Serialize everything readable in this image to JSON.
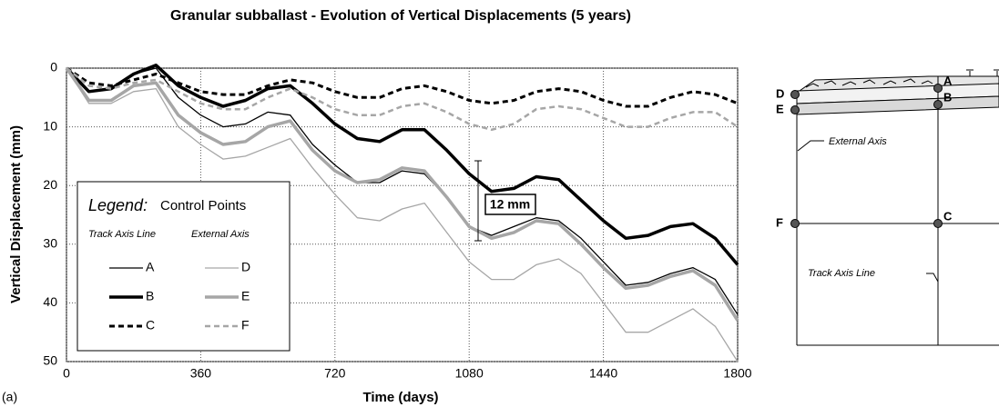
{
  "chart_data": {
    "type": "line",
    "title": "Granular subballast - Evolution of Vertical Displacements (5 years)",
    "x_label": "Time (days)",
    "y_label": "Vertical Displacement (mm)",
    "panel_label": "(a)",
    "x": [
      0,
      60,
      120,
      180,
      240,
      300,
      360,
      420,
      480,
      540,
      600,
      660,
      720,
      780,
      840,
      900,
      960,
      1020,
      1080,
      1140,
      1200,
      1260,
      1320,
      1380,
      1440,
      1500,
      1560,
      1620,
      1680,
      1740,
      1800
    ],
    "xlim": [
      0,
      1800
    ],
    "xticks": [
      0,
      360,
      720,
      1080,
      1440,
      1800
    ],
    "ylim": [
      0,
      50
    ],
    "yticks": [
      0,
      10,
      20,
      30,
      40,
      50
    ],
    "y_inverted": true,
    "grid": true,
    "legend_title": "Legend:",
    "legend_subtitle": "Control Points",
    "legend_columns": [
      "Track Axis Line",
      "External Axis"
    ],
    "annotation": "12 mm",
    "series": [
      {
        "name": "A",
        "color": "#000000",
        "width": 1.3,
        "dashed": false,
        "values": [
          0,
          4,
          3.5,
          1,
          0,
          5,
          8,
          10,
          9.5,
          7.5,
          8,
          13,
          16.5,
          19.5,
          19.5,
          17.5,
          18,
          22,
          27,
          28.5,
          27,
          25.5,
          26,
          29,
          33,
          37,
          36.5,
          35,
          34,
          36,
          42
        ]
      },
      {
        "name": "B",
        "color": "#000000",
        "width": 3.5,
        "dashed": false,
        "values": [
          0,
          4,
          3.5,
          1,
          -0.5,
          3,
          5,
          6.5,
          5.5,
          3.5,
          3,
          6,
          9.5,
          12,
          12.5,
          10.5,
          10.5,
          14,
          18,
          21,
          20.5,
          18.5,
          19,
          22.5,
          26,
          29,
          28.5,
          27,
          26.5,
          29,
          33.5
        ]
      },
      {
        "name": "C",
        "color": "#000000",
        "width": 3,
        "dashed": true,
        "values": [
          0,
          2.5,
          3,
          2,
          1,
          2.5,
          4,
          4.5,
          4.5,
          3,
          2,
          2.5,
          4,
          5,
          5,
          3.5,
          3,
          4,
          5.5,
          6,
          5.5,
          4,
          3.5,
          4,
          5.5,
          6.5,
          6.5,
          5,
          4,
          4.5,
          6
        ]
      },
      {
        "name": "D",
        "color": "#a6a6a6",
        "width": 1.3,
        "dashed": false,
        "values": [
          0,
          6,
          6,
          4,
          3.5,
          10,
          13,
          15.5,
          15,
          13.5,
          12,
          17,
          21.5,
          25.5,
          26,
          24,
          23,
          28,
          33,
          36,
          36,
          33.5,
          32.5,
          35,
          40,
          45,
          45,
          43,
          41,
          44,
          50
        ]
      },
      {
        "name": "E",
        "color": "#a6a6a6",
        "width": 3.5,
        "dashed": false,
        "values": [
          0,
          5.5,
          5.5,
          3,
          2.5,
          8,
          11,
          13,
          12.5,
          10,
          9,
          14,
          17.5,
          19.5,
          19,
          17,
          17.5,
          22,
          27,
          29,
          28,
          26,
          26.5,
          30,
          34,
          37.5,
          37,
          35.5,
          34.5,
          37,
          43
        ]
      },
      {
        "name": "F",
        "color": "#a6a6a6",
        "width": 2.5,
        "dashed": true,
        "values": [
          0,
          3,
          3.5,
          2.5,
          2,
          4,
          6,
          7,
          7,
          5,
          3.5,
          5,
          7,
          8,
          8,
          6.5,
          6,
          7.5,
          9.5,
          10.5,
          9.5,
          7,
          6.5,
          7,
          8.5,
          10,
          10,
          8.5,
          7.5,
          7.5,
          10
        ]
      }
    ]
  },
  "diagram": {
    "points": [
      "A",
      "B",
      "C",
      "D",
      "E",
      "F"
    ],
    "labels": [
      "External Axis",
      "Track Axis Line"
    ]
  }
}
